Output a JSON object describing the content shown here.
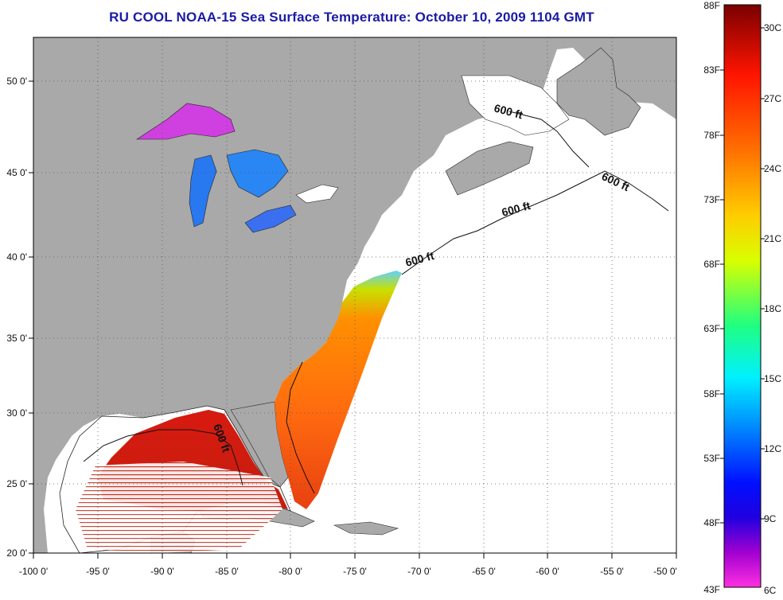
{
  "title": "RU COOL  NOAA-15  Sea Surface Temperature:  October 10, 2009 1104 GMT",
  "map": {
    "lon_ticks": [
      "-100 0'",
      "-95 0'",
      "-90 0'",
      "-85 0'",
      "-80 0'",
      "-75 0'",
      "-70 0'",
      "-65 0'",
      "-60 0'",
      "-55 0'",
      "-50 0'"
    ],
    "lat_ticks": [
      "50 0'",
      "45 0'",
      "40 0'",
      "35 0'",
      "30 0'",
      "25 0'",
      "20 0'"
    ],
    "lon_range": [
      -100,
      -50
    ],
    "lat_range": [
      20,
      52.5
    ],
    "grid": "dotted",
    "land_color": "#a9a9a9",
    "ocean_color": "#ffffff"
  },
  "contour_labels": [
    "600 ft",
    "600 ft",
    "600 ft",
    "600 ft",
    "600 ft"
  ],
  "colorbar": {
    "f_labels": [
      "88F",
      "83F",
      "78F",
      "73F",
      "68F",
      "63F",
      "58F",
      "53F",
      "48F",
      "43F"
    ],
    "c_labels": [
      "30C",
      "27C",
      "24C",
      "21C",
      "18C",
      "15C",
      "12C",
      "9C",
      "6C"
    ],
    "colors": [
      "#8b0000",
      "#ff1a00",
      "#ff7a00",
      "#ffd000",
      "#c8ff00",
      "#30ff60",
      "#00ffff",
      "#00a0ff",
      "#0020ff",
      "#0000ff",
      "#8000c0",
      "#ff20d0"
    ]
  }
}
